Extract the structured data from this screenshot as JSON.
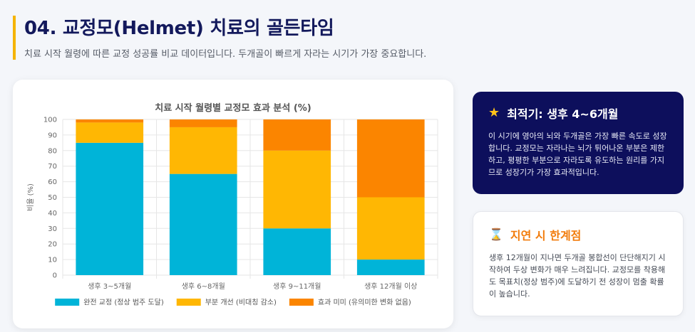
{
  "header": {
    "title": "04. 교정모(Helmet) 치료의 골든타임",
    "subtitle": "치료 시작 월령에 따른 교정 성공률 비교 데이터입니다. 두개골이 빠르게 자라는 시기가 가장 중요합니다."
  },
  "chart_data": {
    "type": "bar",
    "stacked": true,
    "title": "치료 시작 월령별 교정모 효과 분석 (%)",
    "xlabel": "",
    "ylabel": "비율 (%)",
    "ylim": [
      0,
      100
    ],
    "yticks": [
      0,
      10,
      20,
      30,
      40,
      50,
      60,
      70,
      80,
      90,
      100
    ],
    "grid": true,
    "legend": "bottom",
    "categories": [
      "생후 3~5개월",
      "생후 6~8개월",
      "생후 9~11개월",
      "생후 12개월 이상"
    ],
    "series": [
      {
        "name": "완전 교정 (정상 범주 도달)",
        "values": [
          85,
          65,
          30,
          10
        ],
        "color": "#00b4d8"
      },
      {
        "name": "부분 개선 (비대칭 감소)",
        "values": [
          13,
          30,
          50,
          40
        ],
        "color": "#ffb703"
      },
      {
        "name": "효과 미미 (유의미한 변화 없음)",
        "values": [
          2,
          5,
          20,
          50
        ],
        "color": "#fb8500"
      }
    ]
  },
  "cards": {
    "optimal": {
      "icon": "star-icon",
      "title": "최적기: 생후 4~6개월",
      "body": "이 시기에 영아의 뇌와 두개골은 가장 빠른 속도로 성장합니다. 교정모는 자라나는 뇌가 튀어나온 부분은 제한하고, 평평한 부분으로 자라도록 유도하는 원리를 가지므로 성장기가 가장 효과적입니다."
    },
    "limit": {
      "icon": "hourglass-icon",
      "title": "지연 시 한계점",
      "body": "생후 12개월이 지나면 두개골 봉합선이 단단해지기 시작하여 두상 변화가 매우 느려집니다. 교정모를 착용해도 목표치(정상 범주)에 도달하기 전 성장이 멈출 확률이 높습니다."
    }
  }
}
